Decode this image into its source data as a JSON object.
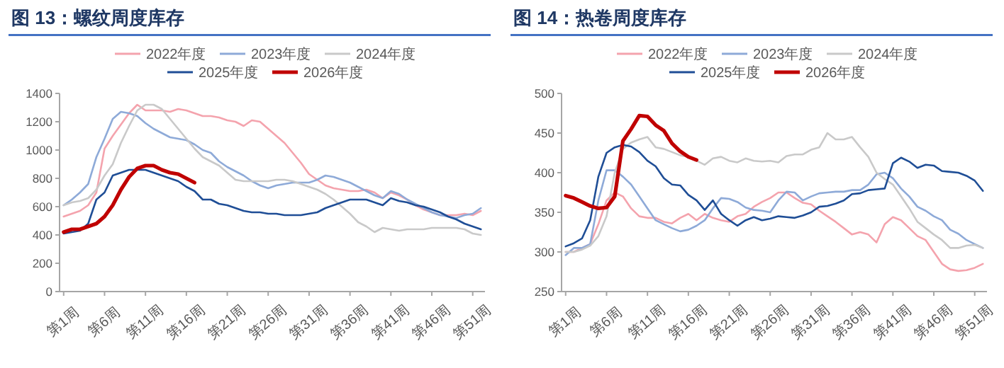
{
  "chart_data": [
    {
      "type": "line",
      "title": "图 13：螺纹周度库存",
      "legend": "top",
      "ylim": [
        0,
        1400
      ],
      "yticks": [
        0,
        200,
        400,
        600,
        800,
        1000,
        1200,
        1400
      ],
      "categories": [
        "第1周",
        null,
        null,
        null,
        null,
        "第6周",
        null,
        null,
        null,
        null,
        "第11周",
        null,
        null,
        null,
        null,
        "第16周",
        null,
        null,
        null,
        null,
        "第21周",
        null,
        null,
        null,
        null,
        "第26周",
        null,
        null,
        null,
        null,
        "第31周",
        null,
        null,
        null,
        null,
        "第36周",
        null,
        null,
        null,
        null,
        "第41周",
        null,
        null,
        null,
        null,
        "第46周",
        null,
        null,
        null,
        null,
        "第51周",
        null
      ],
      "series": [
        {
          "name": "2022年度",
          "color": "#f4a3ad",
          "values": [
            530,
            550,
            570,
            610,
            700,
            1010,
            1100,
            1180,
            1260,
            1320,
            1280,
            1280,
            1280,
            1270,
            1290,
            1280,
            1260,
            1240,
            1240,
            1230,
            1210,
            1200,
            1170,
            1210,
            1200,
            1150,
            1100,
            1050,
            980,
            910,
            830,
            790,
            750,
            730,
            720,
            710,
            710,
            720,
            700,
            660,
            700,
            680,
            650,
            610,
            580,
            560,
            540,
            540,
            540,
            550,
            540,
            570
          ]
        },
        {
          "name": "2023年度",
          "color": "#8eaad8",
          "values": [
            610,
            650,
            700,
            760,
            950,
            1080,
            1220,
            1270,
            1260,
            1240,
            1190,
            1150,
            1120,
            1090,
            1080,
            1070,
            1040,
            1000,
            980,
            920,
            880,
            850,
            820,
            780,
            750,
            730,
            750,
            760,
            770,
            770,
            770,
            790,
            820,
            810,
            790,
            770,
            740,
            710,
            680,
            660,
            710,
            690,
            650,
            620,
            590,
            560,
            540,
            530,
            520,
            540,
            550,
            590
          ]
        },
        {
          "name": "2024年度",
          "color": "#c9c9c9",
          "values": [
            610,
            630,
            640,
            660,
            720,
            820,
            900,
            1050,
            1170,
            1280,
            1320,
            1320,
            1290,
            1220,
            1150,
            1080,
            1010,
            950,
            920,
            890,
            840,
            790,
            780,
            780,
            780,
            780,
            790,
            790,
            780,
            760,
            740,
            720,
            690,
            650,
            600,
            550,
            490,
            460,
            420,
            450,
            440,
            430,
            440,
            440,
            440,
            450,
            450,
            450,
            450,
            440,
            410,
            400
          ]
        },
        {
          "name": "2025年度",
          "color": "#1f4e96",
          "values": [
            410,
            420,
            430,
            480,
            650,
            700,
            820,
            840,
            860,
            860,
            860,
            840,
            820,
            800,
            780,
            740,
            710,
            650,
            650,
            620,
            610,
            590,
            570,
            560,
            560,
            550,
            550,
            540,
            540,
            540,
            550,
            560,
            590,
            610,
            630,
            650,
            650,
            650,
            630,
            610,
            660,
            640,
            630,
            610,
            600,
            580,
            560,
            530,
            510,
            480,
            460,
            440
          ]
        },
        {
          "name": "2026年度",
          "color": "#c00000",
          "values": [
            420,
            440,
            440,
            460,
            480,
            530,
            610,
            720,
            810,
            870,
            890,
            890,
            860,
            840,
            830,
            800,
            770,
            null,
            null,
            null,
            null,
            null,
            null,
            null,
            null,
            null,
            null,
            null,
            null,
            null,
            null,
            null,
            null,
            null,
            null,
            null,
            null,
            null,
            null,
            null,
            null,
            null,
            null,
            null,
            null,
            null,
            null,
            null,
            null,
            null,
            null,
            null
          ]
        }
      ]
    },
    {
      "type": "line",
      "title": "图 14：热卷周度库存",
      "legend": "top",
      "ylim": [
        250,
        500
      ],
      "yticks": [
        250,
        300,
        350,
        400,
        450,
        500
      ],
      "categories": [
        "第1周",
        null,
        null,
        null,
        null,
        "第6周",
        null,
        null,
        null,
        null,
        "第11周",
        null,
        null,
        null,
        null,
        "第16周",
        null,
        null,
        null,
        null,
        "第21周",
        null,
        null,
        null,
        null,
        "第26周",
        null,
        null,
        null,
        null,
        "第31周",
        null,
        null,
        null,
        null,
        "第36周",
        null,
        null,
        null,
        null,
        "第41周",
        null,
        null,
        null,
        null,
        "第46周",
        null,
        null,
        null,
        null,
        "第51周",
        null
      ],
      "series": [
        {
          "name": "2022年度",
          "color": "#f4a3ad",
          "values": [
            300,
            300,
            305,
            310,
            335,
            365,
            375,
            370,
            355,
            345,
            343,
            343,
            338,
            336,
            343,
            348,
            340,
            348,
            343,
            340,
            338,
            345,
            348,
            357,
            363,
            368,
            375,
            375,
            368,
            362,
            360,
            352,
            345,
            338,
            330,
            322,
            325,
            322,
            312,
            335,
            344,
            340,
            330,
            320,
            315,
            300,
            285,
            278,
            276,
            277,
            280,
            285
          ]
        },
        {
          "name": "2023年度",
          "color": "#8eaad8",
          "values": [
            296,
            305,
            305,
            310,
            365,
            403,
            403,
            395,
            385,
            370,
            355,
            340,
            335,
            330,
            326,
            328,
            333,
            340,
            355,
            368,
            367,
            363,
            356,
            353,
            352,
            350,
            365,
            376,
            375,
            365,
            370,
            374,
            375,
            376,
            376,
            378,
            378,
            385,
            398,
            400,
            393,
            380,
            370,
            357,
            352,
            345,
            340,
            328,
            323,
            315,
            310,
            305
          ]
        },
        {
          "name": "2024年度",
          "color": "#c9c9c9",
          "values": [
            300,
            300,
            303,
            308,
            320,
            345,
            400,
            430,
            438,
            442,
            445,
            432,
            430,
            426,
            422,
            420,
            415,
            410,
            418,
            420,
            415,
            413,
            418,
            415,
            414,
            415,
            413,
            421,
            423,
            423,
            429,
            432,
            450,
            442,
            442,
            445,
            432,
            420,
            400,
            392,
            385,
            370,
            355,
            338,
            330,
            322,
            315,
            305,
            305,
            308,
            309,
            305
          ]
        },
        {
          "name": "2025年度",
          "color": "#1f4e96",
          "values": [
            307,
            311,
            317,
            340,
            395,
            425,
            432,
            435,
            433,
            426,
            415,
            408,
            393,
            385,
            384,
            372,
            365,
            353,
            365,
            348,
            340,
            333,
            340,
            344,
            340,
            342,
            345,
            344,
            343,
            346,
            350,
            357,
            358,
            361,
            365,
            373,
            374,
            378,
            379,
            380,
            412,
            419,
            414,
            406,
            410,
            409,
            402,
            401,
            400,
            396,
            390,
            377
          ]
        },
        {
          "name": "2026年度",
          "color": "#c00000",
          "values": [
            371,
            368,
            363,
            358,
            355,
            356,
            370,
            440,
            455,
            472,
            471,
            460,
            453,
            437,
            427,
            420,
            416,
            null,
            null,
            null,
            null,
            null,
            null,
            null,
            null,
            null,
            null,
            null,
            null,
            null,
            null,
            null,
            null,
            null,
            null,
            null,
            null,
            null,
            null,
            null,
            null,
            null,
            null,
            null,
            null,
            null,
            null,
            null,
            null,
            null,
            null,
            null
          ]
        }
      ]
    }
  ]
}
